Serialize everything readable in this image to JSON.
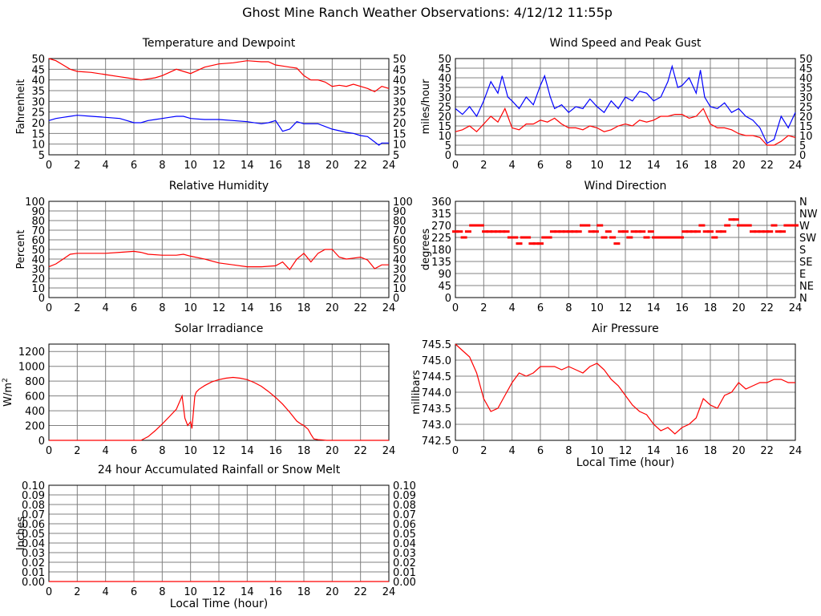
{
  "page": {
    "title": "Ghost Mine Ranch Weather Observations: 4/12/12 11:55p"
  },
  "colors": {
    "series_red": "#ff0000",
    "series_blue": "#0000ff",
    "grid": "#808080",
    "frame": "#000000"
  },
  "chart_data": [
    {
      "id": "temperature",
      "type": "line",
      "title": "Temperature and Dewpoint",
      "xlabel": "",
      "ylabel": "Fahrenheit",
      "xlim": [
        0,
        24
      ],
      "ylim": [
        5,
        50
      ],
      "xticks": [
        0,
        2,
        4,
        6,
        8,
        10,
        12,
        14,
        16,
        18,
        20,
        22,
        24
      ],
      "yticks": [
        5,
        10,
        15,
        20,
        25,
        30,
        35,
        40,
        45,
        50
      ],
      "right_yticks": [
        "5",
        "10",
        "15",
        "20",
        "25",
        "30",
        "35",
        "40",
        "45",
        "50"
      ],
      "grid": true,
      "series": [
        {
          "color": "#ff0000",
          "x": [
            0,
            0.5,
            1,
            1.5,
            2,
            3,
            4,
            5,
            5.5,
            6,
            6.5,
            7,
            7.5,
            8,
            8.5,
            9,
            9.5,
            10,
            10.5,
            11,
            12,
            13,
            14,
            15,
            15.5,
            16,
            16.5,
            17,
            17.5,
            18,
            18.5,
            19,
            19.5,
            20,
            20.5,
            21,
            21.5,
            22,
            22.5,
            23,
            23.5,
            24
          ],
          "y": [
            50,
            49,
            47,
            45,
            44,
            43.5,
            42.5,
            41.5,
            41,
            40.5,
            40,
            40.5,
            41,
            42,
            43.5,
            45,
            44,
            43,
            44.5,
            46,
            47.5,
            48,
            49,
            48.5,
            48.5,
            47,
            46.5,
            46,
            45.5,
            42,
            40,
            40,
            39,
            37,
            37.5,
            37,
            38,
            37,
            36,
            34.5,
            37,
            36
          ]
        },
        {
          "color": "#0000ff",
          "x": [
            0,
            0.5,
            1,
            1.5,
            2,
            3,
            4,
            5,
            5.5,
            6,
            6.5,
            7,
            7.5,
            8,
            8.5,
            9,
            9.5,
            10,
            11,
            12,
            13,
            14,
            15,
            15.5,
            16,
            16.5,
            17,
            17.5,
            18,
            19,
            20,
            21,
            21.5,
            22,
            22.5,
            23,
            23.3,
            23.5,
            24
          ],
          "y": [
            21,
            22,
            22.5,
            23,
            23.5,
            23,
            22.5,
            22,
            21,
            20,
            20,
            21,
            21.5,
            22,
            22.5,
            23,
            23,
            22,
            21.5,
            21.5,
            21,
            20.5,
            19.5,
            20,
            21,
            16,
            17,
            20.5,
            19.5,
            19.5,
            17,
            15.5,
            15,
            14,
            13.5,
            11,
            9.5,
            10.5,
            10.5
          ]
        }
      ]
    },
    {
      "id": "wind-speed",
      "type": "line",
      "title": "Wind Speed and Peak Gust",
      "xlabel": "",
      "ylabel": "miles/hour",
      "xlim": [
        0,
        24
      ],
      "ylim": [
        0,
        50
      ],
      "xticks": [
        0,
        2,
        4,
        6,
        8,
        10,
        12,
        14,
        16,
        18,
        20,
        22,
        24
      ],
      "yticks": [
        0,
        5,
        10,
        15,
        20,
        25,
        30,
        35,
        40,
        45,
        50
      ],
      "right_yticks": [
        "0",
        "5",
        "10",
        "15",
        "20",
        "25",
        "30",
        "35",
        "40",
        "45",
        "50"
      ],
      "grid": true,
      "series": [
        {
          "color": "#0000ff",
          "x": [
            0,
            0.5,
            1,
            1.5,
            2,
            2.5,
            3,
            3.3,
            3.7,
            4,
            4.5,
            5,
            5.5,
            6,
            6.3,
            6.7,
            7,
            7.5,
            8,
            8.5,
            9,
            9.5,
            10,
            10.5,
            11,
            11.5,
            12,
            12.5,
            13,
            13.5,
            14,
            14.5,
            15,
            15.3,
            15.7,
            16,
            16.5,
            17,
            17.3,
            17.6,
            18,
            18.5,
            19,
            19.5,
            20,
            20.5,
            21,
            21.5,
            22,
            22.5,
            23,
            23.5,
            24
          ],
          "y": [
            24,
            21,
            25,
            20,
            28,
            38,
            32,
            41,
            30,
            28,
            24,
            30,
            26,
            36,
            41,
            30,
            24,
            26,
            22,
            25,
            24,
            29,
            25,
            22,
            28,
            24,
            30,
            28,
            33,
            32,
            28,
            30,
            38,
            46,
            35,
            36,
            40,
            32,
            44,
            30,
            25,
            24,
            27,
            22,
            24,
            20,
            18,
            14,
            6,
            8,
            20,
            14,
            22
          ]
        },
        {
          "color": "#ff0000",
          "x": [
            0,
            0.5,
            1,
            1.5,
            2,
            2.5,
            3,
            3.5,
            4,
            4.5,
            5,
            5.5,
            6,
            6.5,
            7,
            7.5,
            8,
            8.5,
            9,
            9.5,
            10,
            10.5,
            11,
            11.5,
            12,
            12.5,
            13,
            13.5,
            14,
            14.5,
            15,
            15.5,
            16,
            16.5,
            17,
            17.5,
            18,
            18.5,
            19,
            19.5,
            20,
            20.5,
            21,
            21.5,
            22,
            22.5,
            23,
            23.5,
            24
          ],
          "y": [
            12,
            13,
            15,
            12,
            16,
            20,
            17,
            24,
            14,
            13,
            16,
            16,
            18,
            17,
            19,
            16,
            14,
            14,
            13,
            15,
            14,
            12,
            13,
            15,
            16,
            15,
            18,
            17,
            18,
            20,
            20,
            21,
            21,
            19,
            20,
            24,
            16,
            14,
            14,
            13,
            11,
            10,
            10,
            9,
            5,
            5,
            7,
            10,
            9
          ]
        }
      ]
    },
    {
      "id": "humidity",
      "type": "line",
      "title": "Relative Humidity",
      "xlabel": "",
      "ylabel": "Percent",
      "xlim": [
        0,
        24
      ],
      "ylim": [
        0,
        100
      ],
      "xticks": [
        0,
        2,
        4,
        6,
        8,
        10,
        12,
        14,
        16,
        18,
        20,
        22,
        24
      ],
      "yticks": [
        0,
        10,
        20,
        30,
        40,
        50,
        60,
        70,
        80,
        90,
        100
      ],
      "right_yticks": [
        "0",
        "10",
        "20",
        "30",
        "40",
        "50",
        "60",
        "70",
        "80",
        "90",
        "100"
      ],
      "grid": true,
      "series": [
        {
          "color": "#ff0000",
          "x": [
            0,
            0.5,
            1,
            1.5,
            2,
            3,
            4,
            5,
            6,
            6.5,
            7,
            8,
            9,
            9.5,
            10,
            11,
            12,
            13,
            14,
            15,
            16,
            16.5,
            17,
            17.5,
            18,
            18.5,
            19,
            19.5,
            20,
            20.5,
            21,
            21.5,
            22,
            22.5,
            23,
            23.5,
            24
          ],
          "y": [
            32,
            35,
            40,
            45,
            46,
            46,
            46,
            47,
            48,
            47,
            45,
            44,
            44,
            45,
            43,
            40,
            36,
            34,
            32,
            32,
            33,
            37,
            29,
            40,
            46,
            37,
            46,
            50,
            50,
            42,
            40,
            41,
            42,
            39,
            30,
            34,
            34
          ]
        }
      ]
    },
    {
      "id": "wind-direction",
      "type": "scatter",
      "title": "Wind Direction",
      "xlabel": "",
      "ylabel": "degrees",
      "xlim": [
        0,
        24
      ],
      "ylim": [
        0,
        360
      ],
      "xticks": [
        0,
        2,
        4,
        6,
        8,
        10,
        12,
        14,
        16,
        18,
        20,
        22,
        24
      ],
      "yticks": [
        0,
        45,
        90,
        135,
        180,
        225,
        270,
        315,
        360
      ],
      "right_yticks": [
        "N",
        "NE",
        "E",
        "SE",
        "S",
        "SW",
        "W",
        "NW",
        "N"
      ],
      "grid": true,
      "series": [
        {
          "color": "#ff0000",
          "x": [
            0,
            0.3,
            0.6,
            0.9,
            1.2,
            1.5,
            1.8,
            2.1,
            2.4,
            2.7,
            3.0,
            3.3,
            3.6,
            3.9,
            4.2,
            4.5,
            4.8,
            5.1,
            5.4,
            5.7,
            6.0,
            6.3,
            6.6,
            6.9,
            7.2,
            7.5,
            7.8,
            8.1,
            8.4,
            8.7,
            9.0,
            9.3,
            9.6,
            9.9,
            10.2,
            10.5,
            10.8,
            11.1,
            11.4,
            11.7,
            12.0,
            12.3,
            12.6,
            12.9,
            13.2,
            13.5,
            13.8,
            14.1,
            14.4,
            14.7,
            15.0,
            15.3,
            15.6,
            15.9,
            16.2,
            16.5,
            16.8,
            17.1,
            17.4,
            17.7,
            18.0,
            18.3,
            18.6,
            18.9,
            19.2,
            19.5,
            19.8,
            20.1,
            20.4,
            20.7,
            21.0,
            21.3,
            21.6,
            21.9,
            22.2,
            22.5,
            22.8,
            23.1,
            23.4,
            23.7,
            24.0
          ],
          "y": [
            247,
            247,
            225,
            247,
            270,
            270,
            270,
            247,
            247,
            247,
            247,
            247,
            247,
            225,
            225,
            202,
            225,
            225,
            202,
            202,
            202,
            225,
            225,
            247,
            247,
            247,
            247,
            247,
            247,
            247,
            270,
            270,
            247,
            247,
            270,
            225,
            247,
            225,
            202,
            247,
            247,
            225,
            247,
            247,
            247,
            225,
            247,
            225,
            225,
            225,
            225,
            225,
            225,
            225,
            247,
            247,
            247,
            247,
            270,
            247,
            247,
            225,
            247,
            247,
            270,
            292,
            292,
            270,
            270,
            270,
            247,
            247,
            247,
            247,
            247,
            270,
            247,
            247,
            270,
            270,
            270
          ]
        }
      ]
    },
    {
      "id": "solar",
      "type": "line",
      "title": "Solar Irradiance",
      "xlabel": "",
      "ylabel": "W/m2",
      "xlim": [
        0,
        24
      ],
      "ylim": [
        0,
        1300
      ],
      "xticks": [
        0,
        2,
        4,
        6,
        8,
        10,
        12,
        14,
        16,
        18,
        20,
        22,
        24
      ],
      "yticks": [
        0,
        200,
        400,
        600,
        800,
        1000,
        1200
      ],
      "right_yticks": [],
      "grid": true,
      "series": [
        {
          "color": "#ff0000",
          "x": [
            0,
            6.5,
            7,
            7.5,
            8,
            8.5,
            9,
            9.4,
            9.6,
            9.8,
            10,
            10.1,
            10.3,
            10.4,
            10.6,
            11,
            11.5,
            12,
            12.5,
            13,
            13.5,
            14,
            14.5,
            15,
            15.5,
            16,
            16.5,
            17,
            17.5,
            17.8,
            18,
            18.3,
            18.5,
            18.7,
            19,
            19.3,
            19.6,
            20,
            24
          ],
          "y": [
            0,
            0,
            50,
            130,
            220,
            320,
            420,
            600,
            300,
            200,
            250,
            160,
            600,
            650,
            690,
            740,
            790,
            820,
            840,
            850,
            840,
            820,
            780,
            730,
            660,
            580,
            490,
            380,
            260,
            220,
            200,
            150,
            80,
            20,
            10,
            5,
            0,
            0,
            0
          ]
        }
      ]
    },
    {
      "id": "pressure",
      "type": "line",
      "title": "Air Pressure",
      "xlabel": "Local Time (hour)",
      "ylabel": "millibars",
      "xlim": [
        0,
        24
      ],
      "ylim": [
        742.5,
        745.5
      ],
      "xticks": [
        0,
        2,
        4,
        6,
        8,
        10,
        12,
        14,
        16,
        18,
        20,
        22,
        24
      ],
      "yticks": [
        742.5,
        743.0,
        743.5,
        744.0,
        744.5,
        745.0,
        745.5
      ],
      "ytick_labels": [
        "742.5",
        "743.0",
        "743.5",
        "744.0",
        "744.5",
        "745.0",
        "745.5"
      ],
      "right_yticks": [],
      "grid": true,
      "series": [
        {
          "color": "#ff0000",
          "x": [
            0,
            0.5,
            1,
            1.5,
            2,
            2.5,
            3,
            3.5,
            4,
            4.5,
            5,
            5.5,
            6,
            6.5,
            7,
            7.5,
            8,
            8.5,
            9,
            9.5,
            10,
            10.5,
            11,
            11.5,
            12,
            12.5,
            13,
            13.5,
            14,
            14.5,
            15,
            15.5,
            16,
            16.5,
            17,
            17.5,
            18,
            18.5,
            19,
            19.5,
            20,
            20.5,
            21,
            21.5,
            22,
            22.5,
            23,
            23.5,
            24
          ],
          "y": [
            745.5,
            745.3,
            745.1,
            744.6,
            743.8,
            743.4,
            743.5,
            743.9,
            744.3,
            744.6,
            744.5,
            744.6,
            744.8,
            744.8,
            744.8,
            744.7,
            744.8,
            744.7,
            744.6,
            744.8,
            744.9,
            744.7,
            744.4,
            744.2,
            743.9,
            743.6,
            743.4,
            743.3,
            743.0,
            742.8,
            742.9,
            742.7,
            742.9,
            743.0,
            743.2,
            743.8,
            743.6,
            743.5,
            743.9,
            744.0,
            744.3,
            744.1,
            744.2,
            744.3,
            744.3,
            744.4,
            744.4,
            744.3,
            744.3
          ]
        }
      ]
    },
    {
      "id": "rainfall",
      "type": "line",
      "title": "24 hour Accumulated Rainfall or Snow Melt",
      "xlabel": "Local Time (hour)",
      "ylabel": "Inches",
      "xlim": [
        0,
        24
      ],
      "ylim": [
        0,
        0.1
      ],
      "xticks": [
        0,
        2,
        4,
        6,
        8,
        10,
        12,
        14,
        16,
        18,
        20,
        22,
        24
      ],
      "yticks": [
        0,
        0.01,
        0.02,
        0.03,
        0.04,
        0.05,
        0.06,
        0.07,
        0.08,
        0.09,
        0.1
      ],
      "ytick_labels": [
        "0.00",
        "0.01",
        "0.02",
        "0.03",
        "0.04",
        "0.05",
        "0.06",
        "0.07",
        "0.08",
        "0.09",
        "0.10"
      ],
      "right_yticks": [
        "0.00",
        "0.01",
        "0.02",
        "0.03",
        "0.04",
        "0.05",
        "0.06",
        "0.07",
        "0.08",
        "0.09",
        "0.10"
      ],
      "grid": true,
      "series": [
        {
          "color": "#ff0000",
          "x": [
            0,
            24
          ],
          "y": [
            0,
            0
          ]
        }
      ]
    }
  ]
}
